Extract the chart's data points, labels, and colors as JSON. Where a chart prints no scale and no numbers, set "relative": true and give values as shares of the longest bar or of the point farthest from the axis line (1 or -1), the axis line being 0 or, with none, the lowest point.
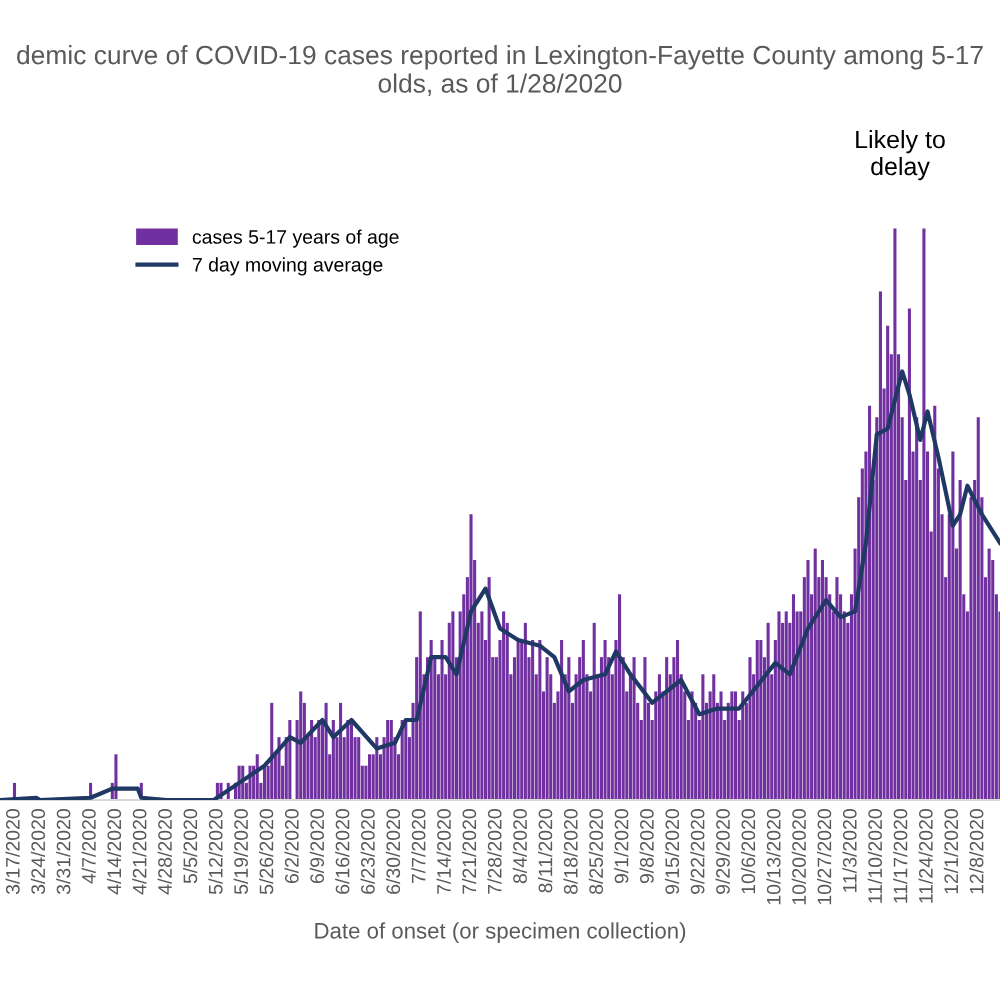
{
  "chart_data": {
    "type": "bar",
    "title": "demic curve of COVID-19 cases reported in Lexington-Fayette County among 5-17\nolds, as of 1/28/2020",
    "xlabel": "Date of onset (or specimen collection)",
    "annotations": [
      "Likely to\ndelay"
    ],
    "relative": true,
    "legend": "top left",
    "grid": false,
    "xlim": [
      "2020-03-13",
      "2020-12-14"
    ],
    "xticks": [
      {
        "value": "2020-03-17",
        "label": "3/17/2020"
      },
      {
        "value": "2020-03-24",
        "label": "3/24/2020"
      },
      {
        "value": "2020-03-31",
        "label": "3/31/2020"
      },
      {
        "value": "2020-04-07",
        "label": "4/7/2020"
      },
      {
        "value": "2020-04-14",
        "label": "4/14/2020"
      },
      {
        "value": "2020-04-21",
        "label": "4/21/2020"
      },
      {
        "value": "2020-04-28",
        "label": "4/28/2020"
      },
      {
        "value": "2020-05-05",
        "label": "5/5/2020"
      },
      {
        "value": "2020-05-12",
        "label": "5/12/2020"
      },
      {
        "value": "2020-05-19",
        "label": "5/19/2020"
      },
      {
        "value": "2020-05-26",
        "label": "5/26/2020"
      },
      {
        "value": "2020-06-02",
        "label": "6/2/2020"
      },
      {
        "value": "2020-06-09",
        "label": "6/9/2020"
      },
      {
        "value": "2020-06-16",
        "label": "6/16/2020"
      },
      {
        "value": "2020-06-23",
        "label": "6/23/2020"
      },
      {
        "value": "2020-06-30",
        "label": "6/30/2020"
      },
      {
        "value": "2020-07-07",
        "label": "7/7/2020"
      },
      {
        "value": "2020-07-14",
        "label": "7/14/2020"
      },
      {
        "value": "2020-07-21",
        "label": "7/21/2020"
      },
      {
        "value": "2020-07-28",
        "label": "7/28/2020"
      },
      {
        "value": "2020-08-04",
        "label": "8/4/2020"
      },
      {
        "value": "2020-08-11",
        "label": "8/11/2020"
      },
      {
        "value": "2020-08-18",
        "label": "8/18/2020"
      },
      {
        "value": "2020-08-25",
        "label": "8/25/2020"
      },
      {
        "value": "2020-09-01",
        "label": "9/1/2020"
      },
      {
        "value": "2020-09-08",
        "label": "9/8/2020"
      },
      {
        "value": "2020-09-15",
        "label": "9/15/2020"
      },
      {
        "value": "2020-09-22",
        "label": "9/22/2020"
      },
      {
        "value": "2020-09-29",
        "label": "9/29/2020"
      },
      {
        "value": "2020-10-06",
        "label": "10/6/2020"
      },
      {
        "value": "2020-10-13",
        "label": "10/13/2020"
      },
      {
        "value": "2020-10-20",
        "label": "10/20/2020"
      },
      {
        "value": "2020-10-27",
        "label": "10/27/2020"
      },
      {
        "value": "2020-11-03",
        "label": "11/3/2020"
      },
      {
        "value": "2020-11-10",
        "label": "11/10/2020"
      },
      {
        "value": "2020-11-17",
        "label": "11/17/2020"
      },
      {
        "value": "2020-11-24",
        "label": "11/24/2020"
      },
      {
        "value": "2020-12-01",
        "label": "12/1/2020"
      },
      {
        "value": "2020-12-08",
        "label": "12/8/2020"
      }
    ],
    "series": [
      {
        "name": "cases 5-17 years of age",
        "color": "#7030a0",
        "x": [
          "2020-03-13",
          "2020-03-14",
          "2020-03-15",
          "2020-03-16",
          "2020-03-17",
          "2020-03-18",
          "2020-03-19",
          "2020-03-20",
          "2020-03-21",
          "2020-03-22",
          "2020-03-23",
          "2020-03-24",
          "2020-03-25",
          "2020-03-26",
          "2020-03-27",
          "2020-03-28",
          "2020-03-29",
          "2020-03-30",
          "2020-03-31",
          "2020-04-01",
          "2020-04-02",
          "2020-04-03",
          "2020-04-04",
          "2020-04-05",
          "2020-04-06",
          "2020-04-07",
          "2020-04-08",
          "2020-04-09",
          "2020-04-10",
          "2020-04-11",
          "2020-04-12",
          "2020-04-13",
          "2020-04-14",
          "2020-04-15",
          "2020-04-16",
          "2020-04-17",
          "2020-04-18",
          "2020-04-19",
          "2020-04-20",
          "2020-04-21",
          "2020-04-22",
          "2020-04-23",
          "2020-04-24",
          "2020-04-25",
          "2020-04-26",
          "2020-04-27",
          "2020-04-28",
          "2020-04-29",
          "2020-04-30",
          "2020-05-01",
          "2020-05-02",
          "2020-05-03",
          "2020-05-04",
          "2020-05-05",
          "2020-05-06",
          "2020-05-07",
          "2020-05-08",
          "2020-05-09",
          "2020-05-10",
          "2020-05-11",
          "2020-05-12",
          "2020-05-13",
          "2020-05-14",
          "2020-05-15",
          "2020-05-16",
          "2020-05-17",
          "2020-05-18",
          "2020-05-19",
          "2020-05-20",
          "2020-05-21",
          "2020-05-22",
          "2020-05-23",
          "2020-05-24",
          "2020-05-25",
          "2020-05-26",
          "2020-05-27",
          "2020-05-28",
          "2020-05-29",
          "2020-05-30",
          "2020-05-31",
          "2020-06-01",
          "2020-06-02",
          "2020-06-03",
          "2020-06-04",
          "2020-06-05",
          "2020-06-06",
          "2020-06-07",
          "2020-06-08",
          "2020-06-09",
          "2020-06-10",
          "2020-06-11",
          "2020-06-12",
          "2020-06-13",
          "2020-06-14",
          "2020-06-15",
          "2020-06-16",
          "2020-06-17",
          "2020-06-18",
          "2020-06-19",
          "2020-06-20",
          "2020-06-21",
          "2020-06-22",
          "2020-06-23",
          "2020-06-24",
          "2020-06-25",
          "2020-06-26",
          "2020-06-27",
          "2020-06-28",
          "2020-06-29",
          "2020-06-30",
          "2020-07-01",
          "2020-07-02",
          "2020-07-03",
          "2020-07-04",
          "2020-07-05",
          "2020-07-06",
          "2020-07-07",
          "2020-07-08",
          "2020-07-09",
          "2020-07-10",
          "2020-07-11",
          "2020-07-12",
          "2020-07-13",
          "2020-07-14",
          "2020-07-15",
          "2020-07-16",
          "2020-07-17",
          "2020-07-18",
          "2020-07-19",
          "2020-07-20",
          "2020-07-21",
          "2020-07-22",
          "2020-07-23",
          "2020-07-24",
          "2020-07-25",
          "2020-07-26",
          "2020-07-27",
          "2020-07-28",
          "2020-07-29",
          "2020-07-30",
          "2020-07-31",
          "2020-08-01",
          "2020-08-02",
          "2020-08-03",
          "2020-08-04",
          "2020-08-05",
          "2020-08-06",
          "2020-08-07",
          "2020-08-08",
          "2020-08-09",
          "2020-08-10",
          "2020-08-11",
          "2020-08-12",
          "2020-08-13",
          "2020-08-14",
          "2020-08-15",
          "2020-08-16",
          "2020-08-17",
          "2020-08-18",
          "2020-08-19",
          "2020-08-20",
          "2020-08-21",
          "2020-08-22",
          "2020-08-23",
          "2020-08-24",
          "2020-08-25",
          "2020-08-26",
          "2020-08-27",
          "2020-08-28",
          "2020-08-29",
          "2020-08-30",
          "2020-08-31",
          "2020-09-01",
          "2020-09-02",
          "2020-09-03",
          "2020-09-04",
          "2020-09-05",
          "2020-09-06",
          "2020-09-07",
          "2020-09-08",
          "2020-09-09",
          "2020-09-10",
          "2020-09-11",
          "2020-09-12",
          "2020-09-13",
          "2020-09-14",
          "2020-09-15",
          "2020-09-16",
          "2020-09-17",
          "2020-09-18",
          "2020-09-19",
          "2020-09-20",
          "2020-09-21",
          "2020-09-22",
          "2020-09-23",
          "2020-09-24",
          "2020-09-25",
          "2020-09-26",
          "2020-09-27",
          "2020-09-28",
          "2020-09-29",
          "2020-09-30",
          "2020-10-01",
          "2020-10-02",
          "2020-10-03",
          "2020-10-04",
          "2020-10-05",
          "2020-10-06",
          "2020-10-07",
          "2020-10-08",
          "2020-10-09",
          "2020-10-10",
          "2020-10-11",
          "2020-10-12",
          "2020-10-13",
          "2020-10-14",
          "2020-10-15",
          "2020-10-16",
          "2020-10-17",
          "2020-10-18",
          "2020-10-19",
          "2020-10-20",
          "2020-10-21",
          "2020-10-22",
          "2020-10-23",
          "2020-10-24",
          "2020-10-25",
          "2020-10-26",
          "2020-10-27",
          "2020-10-28",
          "2020-10-29",
          "2020-10-30",
          "2020-10-31",
          "2020-11-01",
          "2020-11-02",
          "2020-11-03",
          "2020-11-04",
          "2020-11-05",
          "2020-11-06",
          "2020-11-07",
          "2020-11-08",
          "2020-11-09",
          "2020-11-10",
          "2020-11-11",
          "2020-11-12",
          "2020-11-13",
          "2020-11-14",
          "2020-11-15",
          "2020-11-16",
          "2020-11-17",
          "2020-11-18",
          "2020-11-19",
          "2020-11-20",
          "2020-11-21",
          "2020-11-22",
          "2020-11-23",
          "2020-11-24",
          "2020-11-25",
          "2020-11-26",
          "2020-11-27",
          "2020-11-28",
          "2020-11-29",
          "2020-11-30",
          "2020-12-01",
          "2020-12-02",
          "2020-12-03",
          "2020-12-04",
          "2020-12-05",
          "2020-12-06",
          "2020-12-07",
          "2020-12-08",
          "2020-12-09",
          "2020-12-10",
          "2020-12-11",
          "2020-12-12",
          "2020-12-13",
          "2020-12-14"
        ],
        "values": [
          0,
          0,
          0,
          0,
          0.03,
          0,
          0,
          0,
          0,
          0,
          0,
          0,
          0,
          0,
          0,
          0,
          0,
          0,
          0,
          0,
          0,
          0,
          0,
          0,
          0,
          0.03,
          0,
          0,
          0,
          0,
          0,
          0.03,
          0.08,
          0,
          0,
          0,
          0,
          0,
          0,
          0.03,
          0,
          0,
          0,
          0,
          0,
          0,
          0,
          0,
          0,
          0,
          0,
          0,
          0,
          0,
          0,
          0,
          0,
          0,
          0,
          0,
          0.03,
          0.03,
          0,
          0.03,
          0,
          0.03,
          0.06,
          0.06,
          0.03,
          0.06,
          0.06,
          0.08,
          0.03,
          0.06,
          0.06,
          0.17,
          0.08,
          0.11,
          0.06,
          0.11,
          0.14,
          0,
          0.14,
          0.19,
          0.17,
          0.11,
          0.14,
          0.11,
          0.14,
          0.14,
          0.17,
          0.08,
          0.14,
          0.11,
          0.17,
          0.11,
          0.14,
          0.14,
          0.11,
          0.11,
          0.06,
          0.06,
          0.08,
          0.08,
          0.11,
          0.08,
          0.11,
          0.14,
          0.14,
          0.11,
          0.08,
          0.14,
          0.14,
          0.11,
          0.17,
          0.25,
          0.33,
          0.22,
          0.25,
          0.28,
          0.25,
          0.22,
          0.28,
          0.22,
          0.31,
          0.33,
          0.25,
          0.33,
          0.36,
          0.39,
          0.5,
          0.42,
          0.31,
          0.33,
          0.28,
          0.39,
          0.25,
          0.25,
          0.28,
          0.33,
          0.31,
          0.22,
          0.25,
          0.28,
          0.28,
          0.31,
          0.25,
          0.28,
          0.22,
          0.28,
          0.19,
          0.25,
          0.22,
          0.17,
          0.19,
          0.28,
          0.22,
          0.25,
          0.17,
          0.22,
          0.25,
          0.28,
          0.22,
          0.19,
          0.31,
          0.22,
          0.25,
          0.28,
          0.25,
          0.22,
          0.28,
          0.36,
          0.25,
          0.19,
          0.22,
          0.25,
          0.17,
          0.14,
          0.25,
          0.17,
          0.14,
          0.19,
          0.22,
          0.19,
          0.25,
          0.22,
          0.25,
          0.28,
          0.22,
          0.19,
          0.14,
          0.19,
          0.17,
          0.14,
          0.22,
          0.17,
          0.19,
          0.22,
          0.17,
          0.19,
          0.14,
          0.17,
          0.19,
          0.19,
          0.14,
          0.19,
          0.17,
          0.25,
          0.22,
          0.28,
          0.28,
          0.25,
          0.31,
          0.22,
          0.28,
          0.33,
          0.31,
          0.33,
          0.31,
          0.36,
          0.33,
          0.33,
          0.39,
          0.42,
          0.36,
          0.44,
          0.39,
          0.42,
          0.39,
          0.36,
          0.33,
          0.39,
          0.36,
          0.33,
          0.31,
          0.36,
          0.44,
          0.53,
          0.58,
          0.61,
          0.69,
          0.56,
          0.67,
          0.89,
          0.72,
          0.83,
          0.78,
          1,
          0.78,
          0.67,
          0.56,
          0.86,
          0.61,
          0.67,
          0.56,
          1,
          0.61,
          0.47,
          0.69,
          0.58,
          0.5,
          0.39,
          0.5,
          0.61,
          0.44,
          0.56,
          0.36,
          0.33,
          0.53,
          0.56,
          0.67,
          0.53,
          0.39,
          0.44,
          0.42,
          0.36,
          0.33
        ]
      },
      {
        "name": "7 day moving average",
        "type": "line",
        "color": "#1f3864",
        "x": [
          "2020-03-13",
          "2020-03-23",
          "2020-03-24",
          "2020-04-07",
          "2020-04-13",
          "2020-04-20",
          "2020-04-21",
          "2020-04-28",
          "2020-05-11",
          "2020-05-18",
          "2020-05-25",
          "2020-06-01",
          "2020-06-04",
          "2020-06-10",
          "2020-06-13",
          "2020-06-18",
          "2020-06-25",
          "2020-06-30",
          "2020-07-03",
          "2020-07-06",
          "2020-07-10",
          "2020-07-14",
          "2020-07-17",
          "2020-07-21",
          "2020-07-25",
          "2020-07-29",
          "2020-08-03",
          "2020-08-09",
          "2020-08-13",
          "2020-08-17",
          "2020-08-21",
          "2020-08-27",
          "2020-08-30",
          "2020-09-03",
          "2020-09-09",
          "2020-09-13",
          "2020-09-17",
          "2020-09-22",
          "2020-09-27",
          "2020-10-03",
          "2020-10-08",
          "2020-10-13",
          "2020-10-17",
          "2020-10-22",
          "2020-10-27",
          "2020-10-31",
          "2020-11-04",
          "2020-11-07",
          "2020-11-10",
          "2020-11-13",
          "2020-11-17",
          "2020-11-19",
          "2020-11-22",
          "2020-11-24",
          "2020-11-27",
          "2020-12-01",
          "2020-12-03",
          "2020-12-05",
          "2020-12-09",
          "2020-12-14"
        ],
        "values": [
          0,
          0.004,
          0,
          0.004,
          0.02,
          0.02,
          0.004,
          0,
          0,
          0.03,
          0.06,
          0.11,
          0.1,
          0.14,
          0.11,
          0.14,
          0.09,
          0.1,
          0.14,
          0.14,
          0.25,
          0.25,
          0.22,
          0.33,
          0.37,
          0.3,
          0.28,
          0.27,
          0.25,
          0.19,
          0.21,
          0.22,
          0.26,
          0.22,
          0.17,
          0.19,
          0.21,
          0.15,
          0.16,
          0.16,
          0.2,
          0.24,
          0.22,
          0.3,
          0.35,
          0.32,
          0.33,
          0.45,
          0.64,
          0.65,
          0.75,
          0.71,
          0.63,
          0.68,
          0.6,
          0.48,
          0.5,
          0.55,
          0.5,
          0.45
        ]
      }
    ]
  }
}
